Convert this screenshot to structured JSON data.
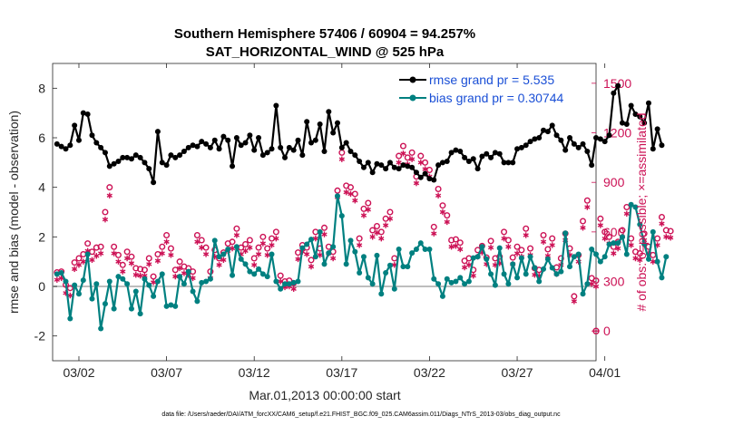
{
  "chart_data": {
    "type": "line",
    "title_line1": "Southern Hemisphere 57406 / 60904 = 94.257%",
    "title_line2": "SAT_HORIZONTAL_WIND @ 525 hPa",
    "xlabel": "Mar.01,2013 00:00:00 start",
    "ylabel_left": "rmse and bias (model - observation)",
    "ylabel_right": "# of obs: o=possible; ×=assimilated",
    "footnote": "data file: /Users/raeder/DAI/ATM_forcXX/CAM6_setup/f.e21.FHIST_BGC.f09_025.CAM6assim.011/Diags_NTrS_2013-03/obs_diag_output.nc",
    "x_ticks": [
      "03/02",
      "03/07",
      "03/12",
      "03/17",
      "03/22",
      "03/27",
      "04/01"
    ],
    "y_left_ticks": [
      "-2",
      "0",
      "2",
      "4",
      "6",
      "8"
    ],
    "y_right_ticks": [
      "0",
      "300",
      "600",
      "900",
      "1200",
      "1500"
    ],
    "y_left_range": [
      -3,
      9
    ],
    "y_right_range": [
      -180,
      1620
    ],
    "x_range_days": [
      0.5,
      31.5
    ],
    "bin_width_days": 0.25,
    "x_start_day": 0.75,
    "legend": [
      {
        "label": "rmse grand pr = 5.535",
        "color": "#000000"
      },
      {
        "label": "bias grand pr = 0.30744",
        "color": "#008080"
      }
    ],
    "series": [
      {
        "name": "rmse",
        "axis": "left",
        "color": "#000000",
        "values": [
          5.75,
          5.65,
          5.55,
          5.7,
          6.5,
          5.9,
          7.0,
          6.95,
          6.1,
          5.8,
          5.6,
          5.4,
          4.85,
          4.95,
          5.05,
          5.2,
          5.2,
          5.15,
          5.3,
          5.2,
          5.0,
          4.75,
          4.2,
          6.25,
          5.0,
          4.9,
          5.3,
          5.2,
          5.3,
          5.45,
          5.6,
          5.7,
          5.65,
          5.85,
          5.75,
          5.6,
          5.9,
          5.55,
          6.05,
          5.9,
          4.85,
          6.0,
          5.7,
          5.8,
          6.1,
          5.5,
          6.0,
          5.3,
          5.4,
          5.55,
          7.3,
          5.6,
          5.2,
          5.6,
          5.5,
          5.9,
          5.3,
          6.65,
          5.8,
          5.9,
          6.55,
          5.45,
          7.05,
          6.2,
          6.6,
          5.6,
          5.8,
          5.45,
          5.3,
          5.05,
          4.8,
          5.0,
          4.6,
          4.95,
          4.9,
          4.75,
          5.0,
          4.8,
          4.75,
          4.9,
          4.85,
          4.8,
          4.6,
          4.4,
          4.55,
          4.35,
          4.3,
          4.9,
          5.0,
          5.05,
          5.4,
          5.5,
          5.45,
          5.2,
          5.05,
          5.15,
          4.75,
          5.25,
          5.35,
          5.2,
          5.4,
          5.35,
          5.0,
          5.0,
          5.0,
          5.55,
          5.6,
          5.7,
          5.85,
          5.95,
          6.0,
          6.3,
          6.25,
          6.5,
          6.1,
          5.9,
          5.5,
          6.0,
          5.75,
          5.6,
          5.75,
          5.45,
          4.9,
          6.0,
          5.95,
          5.85,
          6.1,
          7.8,
          8.1,
          6.6,
          6.55,
          7.3,
          6.95,
          6.85,
          6.6,
          7.4,
          5.55,
          6.35,
          5.7
        ]
      },
      {
        "name": "bias",
        "axis": "left",
        "color": "#008080",
        "values": [
          0.5,
          0.55,
          0.2,
          -1.3,
          0.05,
          -0.3,
          0.25,
          1.3,
          -0.5,
          0.1,
          -1.7,
          -0.7,
          0.2,
          -0.9,
          0.4,
          0.3,
          0.1,
          -0.9,
          -0.2,
          -1.1,
          0.3,
          0.05,
          -0.4,
          0.2,
          0.5,
          -0.8,
          -0.75,
          -0.8,
          0.4,
          0.1,
          0.6,
          -0.2,
          -0.6,
          0.15,
          0.2,
          0.3,
          1.85,
          1.2,
          1.3,
          1.5,
          0.45,
          1.6,
          1.1,
          0.9,
          0.6,
          0.5,
          0.7,
          0.5,
          0.4,
          1.3,
          0.2,
          -0.1,
          0.1,
          0.1,
          0.15,
          0.2,
          1.55,
          1.7,
          1.9,
          1.2,
          2.2,
          0.9,
          1.35,
          1.6,
          3.65,
          2.85,
          0.9,
          1.85,
          1.4,
          0.55,
          1.2,
          0.35,
          0.1,
          1.25,
          -0.3,
          0.55,
          0.85,
          -0.1,
          1.5,
          0.8,
          0.8,
          1.35,
          1.5,
          1.75,
          1.5,
          1.5,
          0.3,
          0.1,
          -0.4,
          0.3,
          0.15,
          0.2,
          0.35,
          0.1,
          0.2,
          1.15,
          1.2,
          1.6,
          1.1,
          0.5,
          0.05,
          1.55,
          0.5,
          0.1,
          0.9,
          0.35,
          1.15,
          0.5,
          1.2,
          0.75,
          0.2,
          0.7,
          1.1,
          0.75,
          0.5,
          0.6,
          2.15,
          0.8,
          1.2,
          1.3,
          -0.3,
          0.1,
          1.5,
          1.3,
          1.0,
          1.2,
          1.7,
          1.75,
          1.75,
          2.0,
          1.3,
          3.3,
          3.2,
          2.5,
          1.7,
          1.1,
          2.2,
          1.0,
          0.35,
          1.2
        ]
      },
      {
        "name": "obs_possible",
        "axis": "right",
        "color": "#cc1155",
        "values": [
          355,
          360,
          280,
          260,
          415,
          440,
          465,
          530,
          480,
          505,
          510,
          720,
          870,
          510,
          460,
          400,
          480,
          450,
          380,
          375,
          370,
          440,
          330,
          465,
          510,
          580,
          500,
          370,
          420,
          390,
          380,
          360,
          580,
          550,
          505,
          360,
          490,
          440,
          475,
          530,
          540,
          620,
          505,
          525,
          550,
          440,
          505,
          570,
          500,
          560,
          600,
          335,
          300,
          305,
          290,
          475,
          520,
          505,
          430,
          600,
          500,
          625,
          510,
          480,
          850,
          1080,
          880,
          870,
          830,
          560,
          740,
          775,
          610,
          635,
          600,
          680,
          720,
          440,
          1060,
          1120,
          1050,
          1080,
          935,
          1060,
          1020,
          975,
          630,
          860,
          760,
          700,
          550,
          555,
          535,
          425,
          440,
          370,
          490,
          515,
          445,
          545,
          440,
          450,
          600,
          550,
          445,
          510,
          490,
          620,
          500,
          380,
          370,
          580,
          495,
          560,
          385,
          440,
          590,
          500,
          210,
          460,
          665,
          790,
          320,
          305,
          680,
          600,
          570,
          510,
          540,
          610,
          750,
          560,
          480,
          470,
          590,
          510,
          460,
          560,
          690,
          610,
          605
        ]
      },
      {
        "name": "obs_assimilated",
        "axis": "right",
        "color": "#cc1155",
        "values": [
          310,
          320,
          230,
          215,
          375,
          400,
          420,
          485,
          430,
          455,
          470,
          675,
          820,
          470,
          420,
          360,
          440,
          410,
          340,
          335,
          335,
          405,
          295,
          425,
          470,
          540,
          460,
          330,
          380,
          350,
          340,
          320,
          540,
          505,
          465,
          320,
          450,
          400,
          430,
          485,
          500,
          580,
          465,
          485,
          505,
          400,
          465,
          530,
          460,
          520,
          560,
          300,
          265,
          270,
          255,
          435,
          480,
          465,
          390,
          560,
          460,
          585,
          470,
          440,
          810,
          1040,
          840,
          830,
          790,
          520,
          700,
          735,
          570,
          595,
          560,
          640,
          680,
          400,
          1020,
          1075,
          1010,
          1040,
          895,
          1020,
          980,
          935,
          590,
          820,
          720,
          660,
          510,
          515,
          495,
          385,
          400,
          335,
          450,
          475,
          405,
          505,
          400,
          410,
          560,
          510,
          405,
          470,
          450,
          580,
          460,
          340,
          335,
          540,
          455,
          520,
          345,
          400,
          550,
          460,
          180,
          420,
          625,
          750,
          285,
          270,
          640,
          560,
          530,
          470,
          500,
          570,
          710,
          520,
          440,
          430,
          550,
          470,
          420,
          520,
          650,
          570,
          565
        ]
      }
    ],
    "end_marker": {
      "axis": "right",
      "value": 0
    }
  }
}
